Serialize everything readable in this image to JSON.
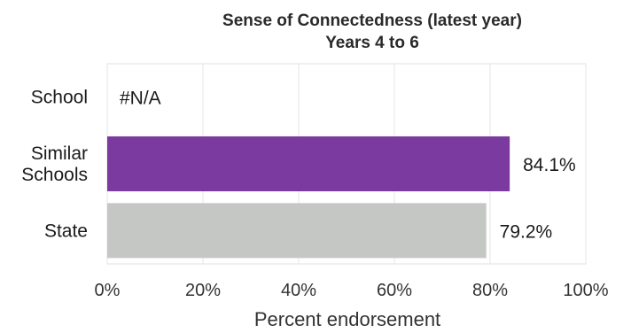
{
  "chart_data": {
    "type": "bar",
    "orientation": "horizontal",
    "title": "Sense of Connectedness (latest year)",
    "subtitle": "Years 4 to 6",
    "xlabel": "Percent endorsement",
    "ylabel": "",
    "xlim": [
      0,
      100
    ],
    "categories": [
      {
        "label_lines": [
          "School"
        ],
        "value": null,
        "value_label": "#N/A",
        "color": "#ffffff"
      },
      {
        "label_lines": [
          "Similar",
          "Schools"
        ],
        "value": 84.1,
        "value_label": "84.1%",
        "color": "#7a3aa0"
      },
      {
        "label_lines": [
          "State"
        ],
        "value": 79.2,
        "value_label": "79.2%",
        "color": "#c5c7c4"
      }
    ],
    "x_ticks": [
      {
        "value": 0,
        "label": "0%"
      },
      {
        "value": 20,
        "label": "20%"
      },
      {
        "value": 40,
        "label": "40%"
      },
      {
        "value": 60,
        "label": "60%"
      },
      {
        "value": 80,
        "label": "80%"
      },
      {
        "value": 100,
        "label": "100%"
      }
    ],
    "grid": true,
    "legend": "none"
  }
}
